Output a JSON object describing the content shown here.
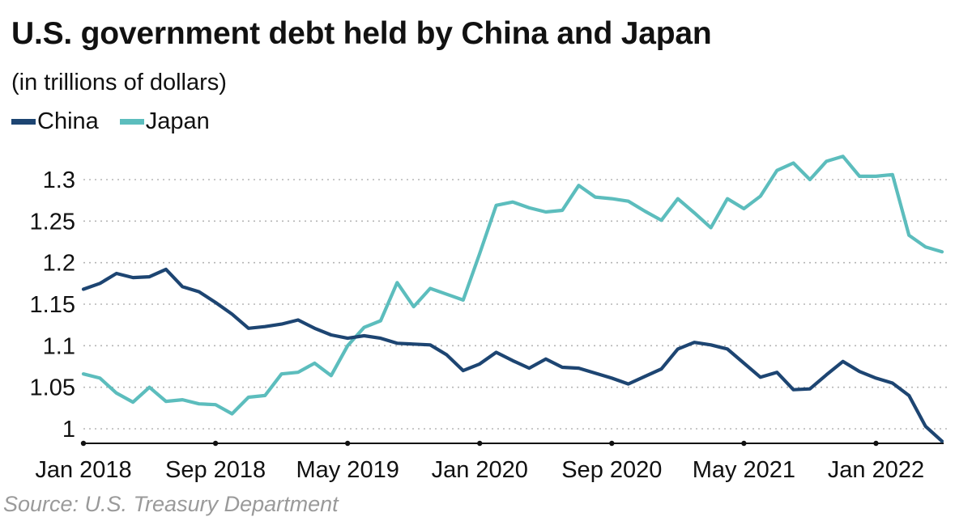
{
  "title": "U.S. government debt held by China and Japan",
  "subtitle": "(in trillions of dollars)",
  "source": "Source: U.S. Treasury Department",
  "colors": {
    "China": "#1d4572",
    "Japan": "#5cbdbd",
    "grid": "#b5b5b5",
    "axis": "#111111"
  },
  "chart_data": {
    "type": "line",
    "title": "U.S. government debt held by China and Japan",
    "subtitle": "(in trillions of dollars)",
    "xlabel": "",
    "ylabel": "",
    "x_tick_labels": [
      "Jan 2018",
      "Sep 2018",
      "May 2019",
      "Jan 2020",
      "Sep 2020",
      "May 2021",
      "Jan 2022"
    ],
    "x_tick_months": [
      "2018-01",
      "2018-09",
      "2019-05",
      "2020-01",
      "2020-09",
      "2021-05",
      "2022-01"
    ],
    "y_ticks": [
      1,
      1.05,
      1.1,
      1.15,
      1.2,
      1.25,
      1.3
    ],
    "ylim": [
      0.985,
      1.335
    ],
    "grid": true,
    "legend": "top-left",
    "x": [
      "2018-01",
      "2018-02",
      "2018-03",
      "2018-04",
      "2018-05",
      "2018-06",
      "2018-07",
      "2018-08",
      "2018-09",
      "2018-10",
      "2018-11",
      "2018-12",
      "2019-01",
      "2019-02",
      "2019-03",
      "2019-04",
      "2019-05",
      "2019-06",
      "2019-07",
      "2019-08",
      "2019-09",
      "2019-10",
      "2019-11",
      "2019-12",
      "2020-01",
      "2020-02",
      "2020-03",
      "2020-04",
      "2020-05",
      "2020-06",
      "2020-07",
      "2020-08",
      "2020-09",
      "2020-10",
      "2020-11",
      "2020-12",
      "2021-01",
      "2021-02",
      "2021-03",
      "2021-04",
      "2021-05",
      "2021-06",
      "2021-07",
      "2021-08",
      "2021-09",
      "2021-10",
      "2021-11",
      "2021-12",
      "2022-01",
      "2022-02",
      "2022-03",
      "2022-04",
      "2022-05"
    ],
    "series": [
      {
        "name": "China",
        "values": [
          1.168,
          1.175,
          1.187,
          1.182,
          1.183,
          1.192,
          1.171,
          1.165,
          1.152,
          1.138,
          1.121,
          1.123,
          1.126,
          1.131,
          1.121,
          1.113,
          1.109,
          1.112,
          1.109,
          1.103,
          1.102,
          1.101,
          1.089,
          1.07,
          1.078,
          1.092,
          1.082,
          1.073,
          1.084,
          1.074,
          1.073,
          1.067,
          1.061,
          1.054,
          1.063,
          1.072,
          1.096,
          1.104,
          1.101,
          1.096,
          1.079,
          1.062,
          1.068,
          1.047,
          1.048,
          1.065,
          1.081,
          1.069,
          1.061,
          1.055,
          1.04,
          1.003,
          0.985
        ]
      },
      {
        "name": "Japan",
        "values": [
          1.066,
          1.061,
          1.043,
          1.032,
          1.05,
          1.033,
          1.035,
          1.03,
          1.029,
          1.018,
          1.038,
          1.04,
          1.066,
          1.068,
          1.079,
          1.064,
          1.1,
          1.122,
          1.13,
          1.176,
          1.147,
          1.169,
          1.162,
          1.155,
          1.211,
          1.269,
          1.273,
          1.266,
          1.261,
          1.263,
          1.293,
          1.279,
          1.277,
          1.274,
          1.262,
          1.251,
          1.277,
          1.26,
          1.242,
          1.277,
          1.265,
          1.28,
          1.311,
          1.32,
          1.3,
          1.322,
          1.328,
          1.304,
          1.304,
          1.306,
          1.233,
          1.219,
          1.213
        ]
      }
    ]
  }
}
